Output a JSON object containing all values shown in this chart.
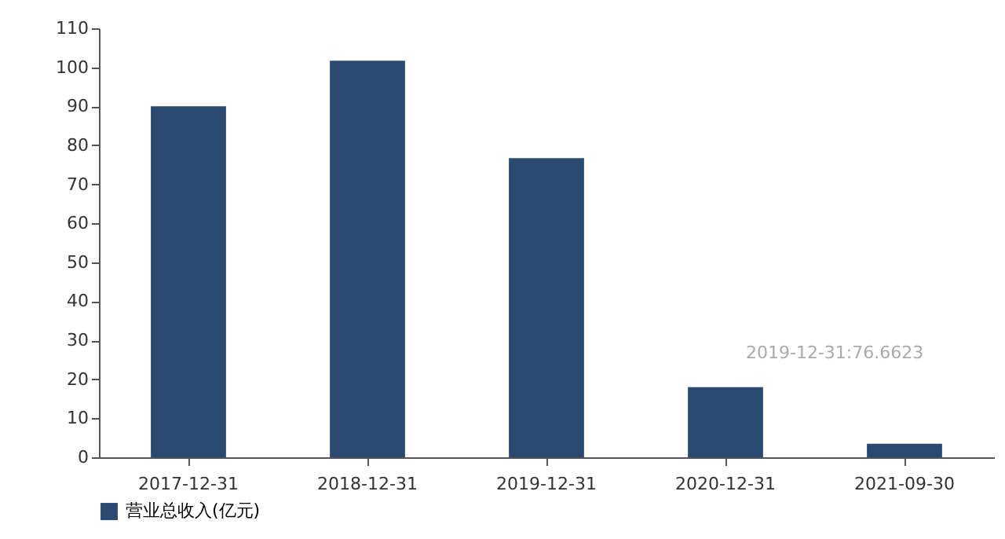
{
  "chart_data": {
    "type": "bar",
    "categories": [
      "2017-12-31",
      "2018-12-31",
      "2019-12-31",
      "2020-12-31",
      "2021-09-30"
    ],
    "series": [
      {
        "name": "营业总收入(亿元)",
        "color": "#2b4a72",
        "values": [
          90,
          101.7,
          76.7,
          18,
          3.5
        ]
      }
    ],
    "ylim": [
      0,
      110
    ],
    "yticks": [
      0,
      10,
      20,
      30,
      40,
      50,
      60,
      70,
      80,
      90,
      100,
      110
    ],
    "grid": false,
    "legend": "bottom",
    "annotations": [
      "2019-12-31:76.6623"
    ]
  }
}
